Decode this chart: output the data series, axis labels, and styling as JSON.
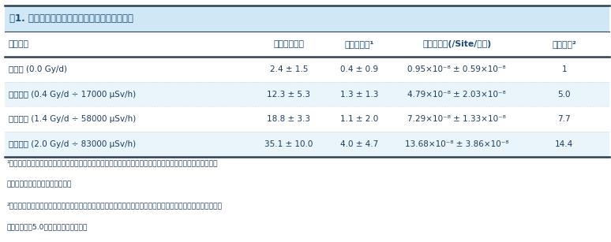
{
  "title": "表1. 各実験区における突然変異数と突然変異率",
  "title_color": "#1a4a7a",
  "header_bg": "#d0e8f5",
  "header_color": "#1a4a7a",
  "text_color": "#1a3a5c",
  "border_color": "#2c3e50",
  "col_headers": [
    "各実験区",
    "全突然変異数",
    "家系変異数¹",
    "突然変異率(/Site/世代)",
    "相対倍率²"
  ],
  "rows": [
    {
      "label": "非照射 (0.0 Gy/d)",
      "total": "2.4 ± 1.5",
      "family": "0.4 ± 0.9",
      "rate": "0.95×10⁻⁸ ± 0.59×10⁻⁸",
      "ratio": "1"
    },
    {
      "label": "低線量率 (0.4 Gy/d ÷ 17000 μSv/h)",
      "total": "12.3 ± 5.3",
      "family": "1.3 ± 1.3",
      "rate": "4.79×10⁻⁸ ± 2.03×10⁻⁸",
      "ratio": "5.0"
    },
    {
      "label": "中線量率 (1.4 Gy/d ÷ 58000 μSv/h)",
      "total": "18.8 ± 3.3",
      "family": "1.1 ± 2.0",
      "rate": "7.29×10⁻⁸ ± 1.33×10⁻⁸",
      "ratio": "7.7"
    },
    {
      "label": "高線量率 (2.0 Gy/d ÷ 83000 μSv/h)",
      "total": "35.1 ± 10.0",
      "family": "4.0 ± 4.7",
      "rate": "13.68×10⁻⁸ ± 3.86×10⁻⁸",
      "ratio": "14.4"
    }
  ],
  "footnotes": [
    "¹家系変異は兄弟で共通して検出された変異の数．配偶子が形成される前の体細胞の段階で既に生じていた変",
    "異を反映していると考えられる．",
    "²非照射区の新規突然変異率を１とした場合の各実験区の変異率の倍率．例えば低線量率区では非照射区に比べ",
    "突然変異率が5.0倍になることを示す．"
  ],
  "fig_width": 7.74,
  "fig_height": 3.07,
  "dpi": 100
}
